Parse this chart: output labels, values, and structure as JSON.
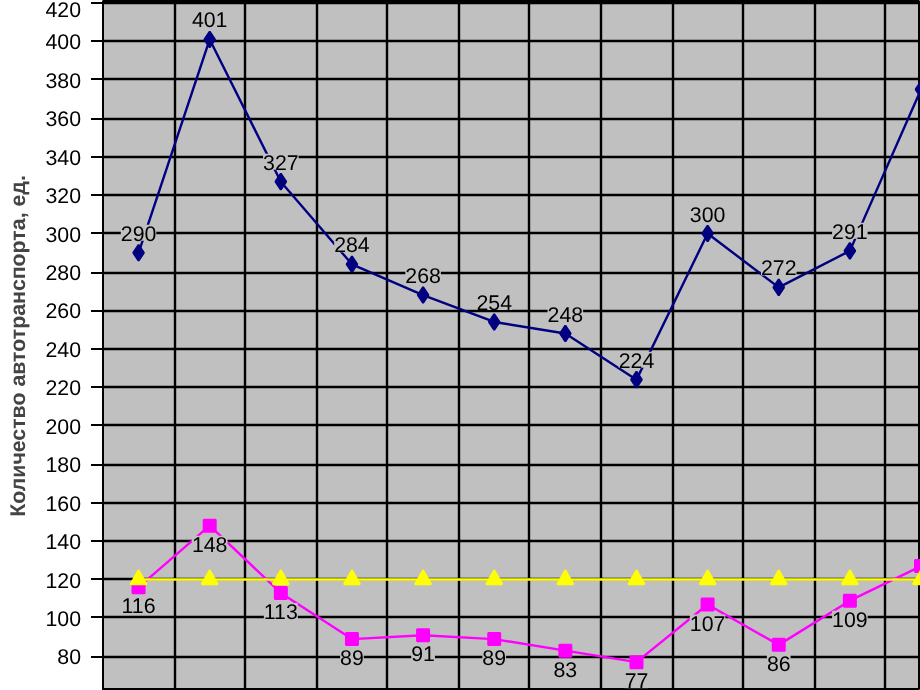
{
  "chart_data": {
    "type": "line",
    "ylabel": "Количество автотранспорта, ед.",
    "categories": [
      null,
      null,
      null,
      null,
      null,
      null,
      null,
      null,
      null,
      null,
      null,
      null
    ],
    "series": [
      {
        "color": "#000080",
        "marker": "diamond",
        "values": [
          290,
          401,
          327,
          284,
          268,
          254,
          248,
          224,
          300,
          272,
          291,
          375
        ],
        "value_labels": [
          "290",
          "401",
          "327",
          "284",
          "268",
          "254",
          "248",
          "224",
          "300",
          "272",
          "291",
          null
        ]
      },
      {
        "color": "#ff00ff",
        "marker": "square",
        "values": [
          116,
          148,
          113,
          89,
          91,
          89,
          83,
          77,
          107,
          86,
          109,
          127
        ],
        "value_labels": [
          "116",
          "148",
          "113",
          "89",
          "91",
          "89",
          "83",
          "77",
          "107",
          "86",
          "109",
          null
        ]
      },
      {
        "color": "#ffff00",
        "marker": "triangle",
        "values": [
          120,
          120,
          120,
          120,
          120,
          120,
          120,
          120,
          120,
          120,
          120,
          120
        ]
      }
    ],
    "ylim": [
      62,
      421
    ],
    "yticks": [
      80,
      100,
      120,
      140,
      160,
      180,
      200,
      220,
      240,
      260,
      280,
      300,
      320,
      340,
      360,
      380,
      400,
      420
    ],
    "grid": true,
    "tick_labels": "y"
  }
}
